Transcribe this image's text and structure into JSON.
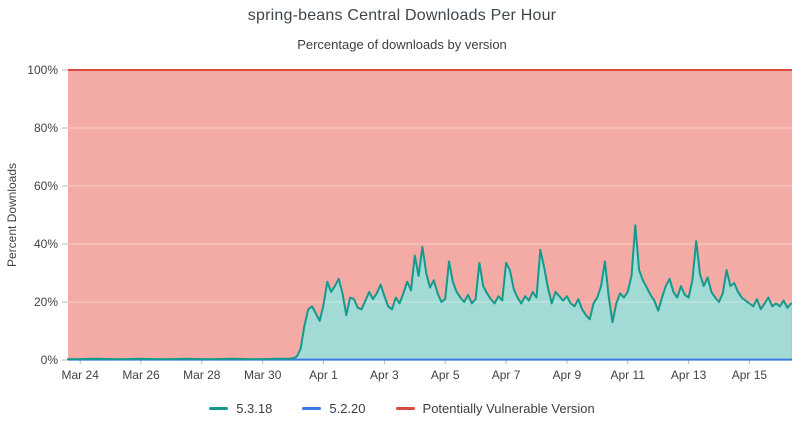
{
  "header": {
    "title": "spring-beans Central Downloads Per Hour",
    "subtitle": "Percentage of downloads by version"
  },
  "chart_data": {
    "type": "area",
    "title": "spring-beans Central Downloads Per Hour",
    "subtitle": "Percentage of downloads by version",
    "ylabel": "Percent Downloads",
    "ylim": [
      0,
      100
    ],
    "grid": true,
    "legend_position": "bottom",
    "x_domain_days": [
      -0.4,
      23.4
    ],
    "y_ticks": [
      {
        "v": 0,
        "label": "0%"
      },
      {
        "v": 20,
        "label": "20%"
      },
      {
        "v": 40,
        "label": "40%"
      },
      {
        "v": 60,
        "label": "60%"
      },
      {
        "v": 80,
        "label": "80%"
      },
      {
        "v": 100,
        "label": "100%"
      }
    ],
    "x_ticks": [
      {
        "t": 0,
        "label": "Mar 24"
      },
      {
        "t": 2,
        "label": "Mar 26"
      },
      {
        "t": 4,
        "label": "Mar 28"
      },
      {
        "t": 6,
        "label": "Mar 30"
      },
      {
        "t": 8,
        "label": "Apr 1"
      },
      {
        "t": 10,
        "label": "Apr 3"
      },
      {
        "t": 12,
        "label": "Apr 5"
      },
      {
        "t": 14,
        "label": "Apr 7"
      },
      {
        "t": 16,
        "label": "Apr 9"
      },
      {
        "t": 18,
        "label": "Apr 11"
      },
      {
        "t": 20,
        "label": "Apr 13"
      },
      {
        "t": 22,
        "label": "Apr 15"
      }
    ],
    "series": [
      {
        "name": "5.3.18",
        "line_color": "#149a8c",
        "fill_color": "#a2dad5",
        "unit": "percent",
        "points": [
          [
            -0.4,
            0.3
          ],
          [
            0,
            0.3
          ],
          [
            0.5,
            0.4
          ],
          [
            1,
            0.3
          ],
          [
            1.5,
            0.3
          ],
          [
            2,
            0.4
          ],
          [
            2.5,
            0.3
          ],
          [
            3,
            0.3
          ],
          [
            3.5,
            0.4
          ],
          [
            4,
            0.3
          ],
          [
            4.5,
            0.3
          ],
          [
            5,
            0.4
          ],
          [
            5.5,
            0.3
          ],
          [
            6,
            0.3
          ],
          [
            6.5,
            0.4
          ],
          [
            6.875,
            0.5
          ],
          [
            7,
            0.6
          ],
          [
            7.125,
            1.2
          ],
          [
            7.25,
            4
          ],
          [
            7.375,
            12
          ],
          [
            7.5,
            17.5
          ],
          [
            7.625,
            18.5
          ],
          [
            7.75,
            16
          ],
          [
            7.875,
            13.5
          ],
          [
            8,
            19
          ],
          [
            8.125,
            27
          ],
          [
            8.25,
            23.5
          ],
          [
            8.375,
            25.5
          ],
          [
            8.5,
            28
          ],
          [
            8.625,
            23
          ],
          [
            8.75,
            15.5
          ],
          [
            8.875,
            21.5
          ],
          [
            9,
            21
          ],
          [
            9.125,
            18
          ],
          [
            9.25,
            17.5
          ],
          [
            9.375,
            20.5
          ],
          [
            9.5,
            23.5
          ],
          [
            9.625,
            21
          ],
          [
            9.75,
            23
          ],
          [
            9.875,
            26
          ],
          [
            10,
            22
          ],
          [
            10.125,
            18.5
          ],
          [
            10.25,
            17.5
          ],
          [
            10.375,
            21.5
          ],
          [
            10.5,
            19.5
          ],
          [
            10.625,
            23
          ],
          [
            10.75,
            27
          ],
          [
            10.875,
            24
          ],
          [
            11,
            36
          ],
          [
            11.125,
            29
          ],
          [
            11.25,
            39
          ],
          [
            11.375,
            30
          ],
          [
            11.5,
            25
          ],
          [
            11.625,
            27.5
          ],
          [
            11.75,
            23
          ],
          [
            11.875,
            20
          ],
          [
            12,
            21
          ],
          [
            12.125,
            34
          ],
          [
            12.25,
            27
          ],
          [
            12.375,
            23.5
          ],
          [
            12.5,
            21.5
          ],
          [
            12.625,
            20
          ],
          [
            12.75,
            22.5
          ],
          [
            12.875,
            19.5
          ],
          [
            13,
            21
          ],
          [
            13.125,
            33.5
          ],
          [
            13.25,
            25.5
          ],
          [
            13.375,
            23
          ],
          [
            13.5,
            21
          ],
          [
            13.625,
            19.5
          ],
          [
            13.75,
            22
          ],
          [
            13.875,
            20.5
          ],
          [
            14,
            33.5
          ],
          [
            14.125,
            31
          ],
          [
            14.25,
            24.5
          ],
          [
            14.375,
            21.5
          ],
          [
            14.5,
            19.5
          ],
          [
            14.625,
            22
          ],
          [
            14.75,
            20.5
          ],
          [
            14.875,
            23.5
          ],
          [
            15,
            21.5
          ],
          [
            15.125,
            38
          ],
          [
            15.25,
            32
          ],
          [
            15.375,
            25
          ],
          [
            15.5,
            19.5
          ],
          [
            15.625,
            23.5
          ],
          [
            15.75,
            22
          ],
          [
            15.875,
            20.5
          ],
          [
            16,
            22
          ],
          [
            16.125,
            19.5
          ],
          [
            16.25,
            18.5
          ],
          [
            16.375,
            21
          ],
          [
            16.5,
            17.5
          ],
          [
            16.625,
            15.5
          ],
          [
            16.75,
            14
          ],
          [
            16.875,
            19.5
          ],
          [
            17,
            21.5
          ],
          [
            17.125,
            25.5
          ],
          [
            17.25,
            34
          ],
          [
            17.375,
            22
          ],
          [
            17.5,
            13
          ],
          [
            17.625,
            19.5
          ],
          [
            17.75,
            23
          ],
          [
            17.875,
            21.5
          ],
          [
            18,
            23.5
          ],
          [
            18.125,
            29
          ],
          [
            18.25,
            46.5
          ],
          [
            18.375,
            31
          ],
          [
            18.5,
            27.5
          ],
          [
            18.625,
            25
          ],
          [
            18.75,
            22.5
          ],
          [
            18.875,
            20.5
          ],
          [
            19,
            17
          ],
          [
            19.125,
            21.5
          ],
          [
            19.25,
            25.5
          ],
          [
            19.375,
            28
          ],
          [
            19.5,
            23.5
          ],
          [
            19.625,
            21.5
          ],
          [
            19.75,
            25.5
          ],
          [
            19.875,
            22.5
          ],
          [
            20,
            21.5
          ],
          [
            20.125,
            27.5
          ],
          [
            20.25,
            41
          ],
          [
            20.375,
            29.5
          ],
          [
            20.5,
            25.5
          ],
          [
            20.625,
            28.5
          ],
          [
            20.75,
            23.5
          ],
          [
            20.875,
            21.5
          ],
          [
            21,
            20
          ],
          [
            21.125,
            23
          ],
          [
            21.25,
            31
          ],
          [
            21.375,
            25.5
          ],
          [
            21.5,
            26.5
          ],
          [
            21.625,
            23.5
          ],
          [
            21.75,
            21.5
          ],
          [
            21.875,
            20.5
          ],
          [
            22,
            19.5
          ],
          [
            22.125,
            18.5
          ],
          [
            22.25,
            21
          ],
          [
            22.375,
            17.5
          ],
          [
            22.5,
            19.5
          ],
          [
            22.625,
            21.5
          ],
          [
            22.75,
            18.5
          ],
          [
            22.875,
            19.5
          ],
          [
            23,
            18.5
          ],
          [
            23.125,
            20.5
          ],
          [
            23.25,
            18
          ],
          [
            23.375,
            19.5
          ]
        ]
      },
      {
        "name": "5.2.20",
        "line_color": "#3b78e7",
        "unit": "percent",
        "approx_constant_value": 0.15
      },
      {
        "name": "Potentially Vulnerable Version",
        "line_color": "#db4a3f",
        "fill_color": "#f5aba5",
        "unit": "percent",
        "values": "complement_to_100"
      }
    ],
    "colors": {
      "axis_text": "#424242",
      "gridline_over_fill": "rgba(255,255,255,0.42)",
      "baseline": "#d9d9d9",
      "tick_mark": "#b8b8b8"
    }
  }
}
